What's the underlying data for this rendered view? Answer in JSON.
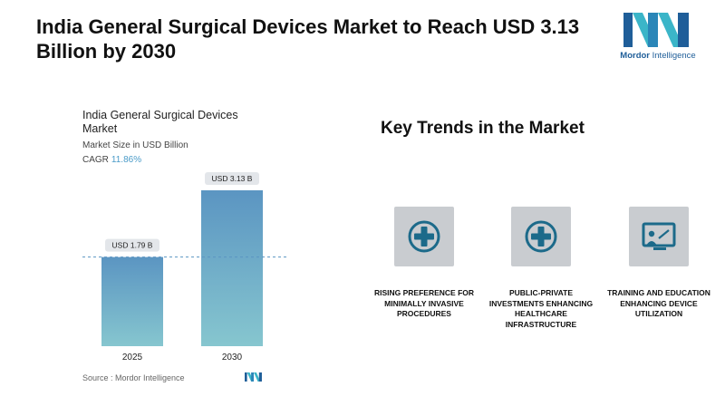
{
  "headline": "India General Surgical Devices Market to Reach USD 3.13 Billion by 2030",
  "logo": {
    "brand_bold": "Mordor",
    "brand_rest": " Intelligence"
  },
  "chart": {
    "title": "India General Surgical Devices Market",
    "subtitle": "Market Size in USD Billion",
    "cagr_label": "CAGR",
    "cagr_value": "11.86%",
    "source": "Source :  Mordor Intelligence"
  },
  "chart_data": {
    "type": "bar",
    "title": "India General Surgical Devices Market",
    "subtitle": "Market Size in USD Billion",
    "categories": [
      "2025",
      "2030"
    ],
    "values": [
      1.79,
      3.13
    ],
    "data_labels": [
      "USD 1.79 B",
      "USD 3.13 B"
    ],
    "ylim": [
      0,
      3.13
    ],
    "reference_line": 1.79,
    "annotations": [
      "CAGR 11.86%"
    ],
    "grid": false
  },
  "trends": {
    "title": "Key Trends in the Market",
    "items": [
      {
        "label": "RISING PREFERENCE FOR MINIMALLY INVASIVE PROCEDURES",
        "icon": "medical-cross-icon"
      },
      {
        "label": "PUBLIC-PRIVATE INVESTMENTS ENHANCING HEALTHCARE INFRASTRUCTURE",
        "icon": "medical-cross-icon"
      },
      {
        "label": "TRAINING AND EDUCATION ENHANCING DEVICE UTILIZATION",
        "icon": "presentation-board-icon"
      }
    ]
  },
  "colors": {
    "bar_top": "#5b95c2",
    "bar_bottom": "#86c6cf",
    "label_box": "#e3e6ea",
    "icon_box": "#c9ccd0",
    "icon_fg": "#1c6a8a",
    "logo_blue": "#1f5e99",
    "logo_teal": "#3bb5c8"
  }
}
